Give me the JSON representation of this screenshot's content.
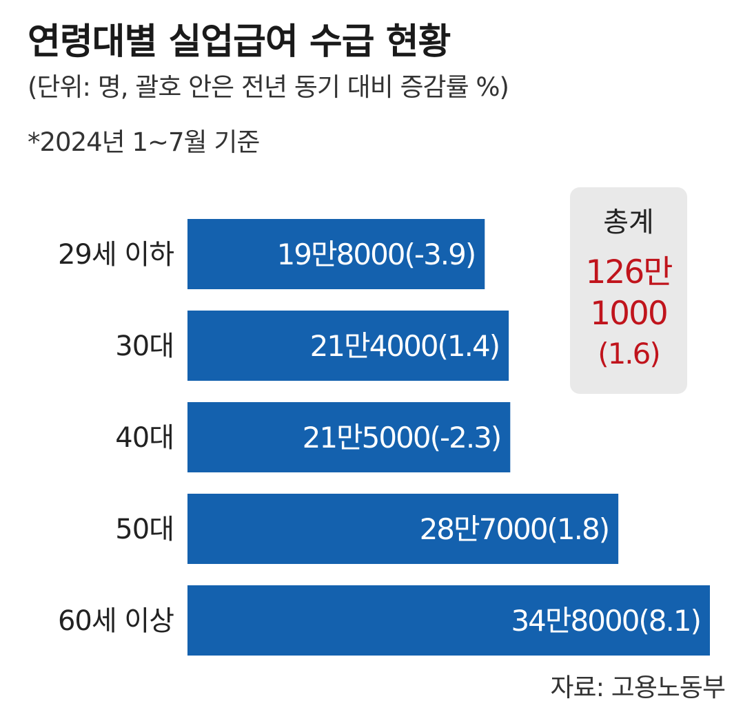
{
  "title": "연령대별 실업급여 수급 현황",
  "subtitle": "(단위: 명, 괄호 안은 전년 동기 대비 증감률 %)",
  "basis": "*2024년 1~7월 기준",
  "total": {
    "label": "총계",
    "value_line1": "126만",
    "value_line2": "1000",
    "change": "(1.6)"
  },
  "source": "자료: 고용노동부",
  "colors": {
    "bar": "#1461ae",
    "bar_text": "#ffffff",
    "total": "#c0141c",
    "box": "#e9e9e9"
  },
  "chart_data": {
    "type": "bar",
    "orientation": "horizontal",
    "categories": [
      "29세 이하",
      "30대",
      "40대",
      "50대",
      "60세 이상"
    ],
    "values": [
      198000,
      214000,
      215000,
      287000,
      348000
    ],
    "value_labels": [
      "19만8000(-3.9)",
      "21만4000(1.4)",
      "21만5000(-2.3)",
      "28만7000(1.8)",
      "34만8000(8.1)"
    ],
    "change_pct": [
      -3.9,
      1.4,
      -2.3,
      1.8,
      8.1
    ],
    "xlim": [
      0,
      348000
    ],
    "grid": false,
    "legend": "none"
  }
}
